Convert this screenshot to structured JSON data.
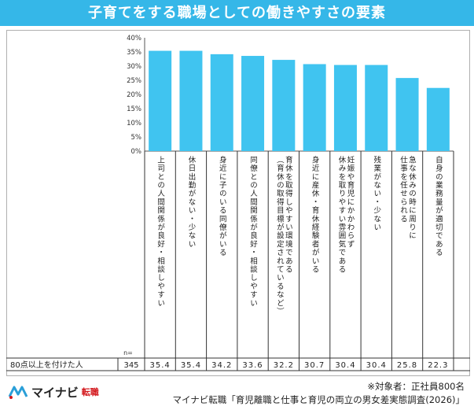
{
  "title": "子育てをする職場としての働きやすさの要素",
  "row": {
    "label": "80点以上を付けた人",
    "n_label": "n=",
    "n_value": "345"
  },
  "footer": {
    "logo_text": "マイナビ",
    "logo_sub": "転職",
    "note_target": "※対象者：正社員800名",
    "note_source": "マイナビ転職「育児離職と仕事と育児の両立の男女差実態調査(2026)」"
  },
  "colors": {
    "header": "#35b7e8",
    "bar": "#40c4f0",
    "logo_red": "#d3181d"
  },
  "chart_data": {
    "type": "bar",
    "ylim": [
      0,
      40
    ],
    "yticks": [
      "0%",
      "5%",
      "10%",
      "15%",
      "20%",
      "25%",
      "30%",
      "35%",
      "40%"
    ],
    "categories": [
      [
        "上司との人間関係が良好・相談しやすい"
      ],
      [
        "休日出勤がない・少ない"
      ],
      [
        "身近に子のいる同僚がいる"
      ],
      [
        "同僚との人間関係が良好・相談しやすい"
      ],
      [
        "育休を取得しやすい環境である",
        "（育休の取得目標が設定されているなど）"
      ],
      [
        "身近に産休・育休経験者がいる"
      ],
      [
        "妊娠や育児にかかわらず",
        "休みを取りやすい雰囲気である"
      ],
      [
        "残業がない・少ない"
      ],
      [
        "急な休みの時に周りに",
        "仕事を任せられる"
      ],
      [
        "自身の業務量が適切である"
      ]
    ],
    "values": [
      35.4,
      35.4,
      34.2,
      33.6,
      32.2,
      30.7,
      30.4,
      30.4,
      25.8,
      22.3
    ],
    "value_labels": [
      "35.4",
      "35.4",
      "34.2",
      "33.6",
      "32.2",
      "30.7",
      "30.4",
      "30.4",
      "25.8",
      "22.3"
    ]
  }
}
